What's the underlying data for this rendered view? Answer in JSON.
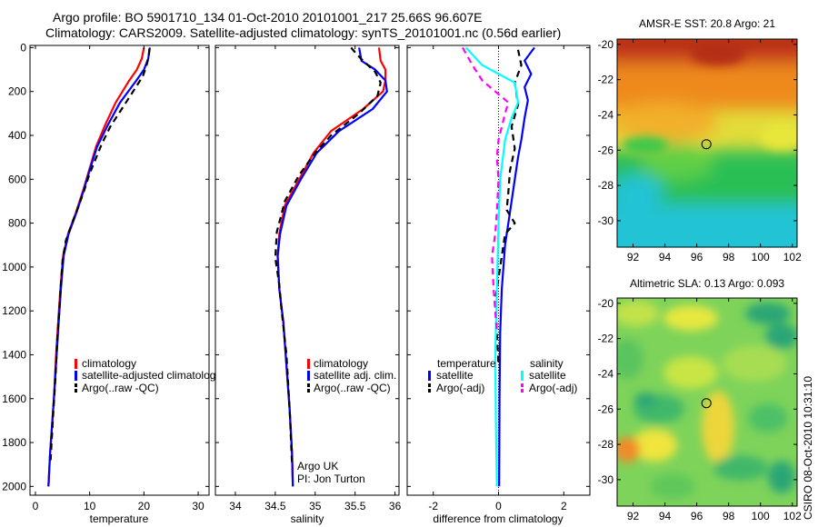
{
  "title": {
    "line1": "Argo profile: BO 5901710_134 01-Oct-2010 20101001_217 25.66S 96.607E",
    "line2": "Climatology: CARS2009. Satellite-adjusted climatology: synTS_20101001.nc (0.56d earlier)"
  },
  "side_label": "CSIRO 08-Oct-2010 10:31:10",
  "colors": {
    "climatology": "#ff0000",
    "satellite": "#0000ff",
    "argo": "#000000",
    "sal_satellite": "#00ffff",
    "sal_argo": "#ff00ff"
  },
  "chart_data": [
    {
      "id": "temperature",
      "type": "line",
      "xlabel": "temperature",
      "ylabel": "",
      "xlim": [
        -1,
        32
      ],
      "ylim": [
        2040,
        -10
      ],
      "xticks": [
        "0",
        "10",
        "20",
        "30"
      ],
      "xtick_values": [
        0,
        10,
        20,
        30
      ],
      "yticks": [
        "0",
        "200",
        "400",
        "600",
        "800",
        "1000",
        "1200",
        "1400",
        "1600",
        "1800",
        "2000"
      ],
      "ytick_values": [
        0,
        200,
        400,
        600,
        800,
        1000,
        1200,
        1400,
        1600,
        1800,
        2000
      ],
      "legend": {
        "placement": "bottom-right",
        "entries": [
          "climatology",
          "satellite-adjusted climatology",
          "Argo(..raw -QC)"
        ]
      },
      "series": [
        {
          "name": "climatology",
          "style": "solid",
          "color": "#ff0000",
          "x": [
            20.0,
            19.6,
            18.7,
            17.3,
            14.8,
            12.9,
            11.2,
            10.0,
            8.8,
            7.5,
            6.0,
            5.1,
            4.6,
            4.2,
            3.8,
            3.4,
            2.7,
            2.4
          ],
          "y": [
            0,
            50,
            100,
            150,
            250,
            350,
            450,
            550,
            650,
            750,
            850,
            950,
            1100,
            1250,
            1400,
            1600,
            1850,
            2000
          ]
        },
        {
          "name": "satellite-adjusted climatology",
          "style": "solid",
          "color": "#0000ff",
          "x": [
            21.1,
            20.8,
            20.0,
            18.6,
            15.6,
            13.4,
            11.4,
            10.1,
            8.9,
            7.6,
            6.1,
            5.2,
            4.7,
            4.3,
            3.9,
            3.4,
            2.7,
            2.4
          ],
          "y": [
            0,
            50,
            100,
            150,
            250,
            350,
            450,
            550,
            650,
            750,
            850,
            950,
            1100,
            1250,
            1400,
            1600,
            1850,
            2000
          ]
        },
        {
          "name": "Argo(..raw -QC)",
          "style": "dashed",
          "color": "#000000",
          "x": [
            21.0,
            20.9,
            20.5,
            19.8,
            18.0,
            15.9,
            13.8,
            12.2,
            10.9,
            9.9,
            9.0,
            8.0,
            6.9,
            5.6,
            5.0,
            4.7,
            4.4,
            4.0,
            3.7,
            3.2,
            2.8
          ],
          "y": [
            5,
            40,
            80,
            130,
            200,
            280,
            360,
            440,
            520,
            580,
            650,
            720,
            790,
            880,
            970,
            1080,
            1200,
            1350,
            1500,
            1700,
            1880
          ]
        }
      ]
    },
    {
      "id": "salinity",
      "type": "line",
      "xlabel": "salinity",
      "ylabel": "",
      "xlim": [
        33.75,
        36.05
      ],
      "ylim": [
        2040,
        -10
      ],
      "xticks": [
        "34",
        "34.5",
        "35",
        "35.5",
        "36"
      ],
      "xtick_values": [
        34,
        34.5,
        35,
        35.5,
        36
      ],
      "annotations": [
        "Argo UK",
        "PI: Jon Turton"
      ],
      "legend": {
        "placement": "bottom-right",
        "entries": [
          "climatology",
          "satellite adj. clim.",
          "Argo(..raw -QC)"
        ]
      },
      "series": [
        {
          "name": "climatology",
          "style": "solid",
          "color": "#ff0000",
          "x": [
            35.8,
            35.82,
            35.88,
            35.88,
            35.85,
            35.6,
            35.2,
            34.98,
            34.8,
            34.62,
            34.55,
            34.53,
            34.55,
            34.6,
            34.64,
            34.68,
            34.71,
            34.72
          ],
          "y": [
            0,
            60,
            100,
            150,
            200,
            280,
            380,
            480,
            600,
            720,
            850,
            950,
            1100,
            1250,
            1450,
            1650,
            1850,
            2000
          ]
        },
        {
          "name": "satellite adj. clim.",
          "style": "solid",
          "color": "#0000ff",
          "x": [
            35.55,
            35.58,
            35.75,
            35.88,
            35.9,
            35.72,
            35.3,
            35.02,
            34.82,
            34.64,
            34.56,
            34.53,
            34.55,
            34.6,
            34.64,
            34.68,
            34.71,
            34.72
          ],
          "y": [
            0,
            60,
            100,
            150,
            200,
            280,
            380,
            480,
            600,
            720,
            850,
            950,
            1100,
            1250,
            1450,
            1650,
            1850,
            2000
          ]
        },
        {
          "name": "Argo(..raw -QC)",
          "style": "dashed",
          "color": "#000000",
          "x": [
            35.45,
            35.52,
            35.6,
            35.75,
            35.82,
            35.78,
            35.55,
            35.2,
            35.0,
            34.8,
            34.62,
            34.52,
            34.5,
            34.55,
            34.58,
            34.64,
            34.68,
            34.71
          ],
          "y": [
            0,
            30,
            60,
            110,
            160,
            220,
            300,
            400,
            480,
            580,
            700,
            840,
            960,
            1080,
            1200,
            1400,
            1650,
            1900
          ]
        }
      ]
    },
    {
      "id": "difference",
      "type": "line",
      "xlabel": "difference from climatology",
      "ylabel": "",
      "xlim": [
        -2.8,
        2.8
      ],
      "ylim": [
        2040,
        -10
      ],
      "xticks": [
        "-2",
        "0",
        "2"
      ],
      "xtick_values": [
        -2,
        0,
        2
      ],
      "legend": {
        "placement": "bottom",
        "groups": [
          {
            "title": "temperature",
            "entries": [
              "satellite",
              "Argo(-adj)"
            ]
          },
          {
            "title": "salinity",
            "entries": [
              "satellite",
              "Argo(-adj)"
            ]
          }
        ]
      },
      "series": [
        {
          "name": "temperature satellite",
          "style": "solid",
          "color": "#0000ff",
          "x": [
            1.1,
            0.8,
            1.0,
            0.8,
            0.9,
            0.8,
            0.7,
            0.6,
            0.5,
            0.4,
            0.3,
            0.2,
            0.1,
            0.05,
            0.03,
            0.02
          ],
          "y": [
            0,
            60,
            120,
            180,
            240,
            320,
            420,
            500,
            600,
            700,
            800,
            900,
            1100,
            1300,
            1600,
            2000
          ]
        },
        {
          "name": "temperature Argo(-adj)",
          "style": "dashed",
          "color": "#000000",
          "x": [
            0.6,
            0.7,
            0.5,
            0.6,
            0.4,
            0.5,
            0.35,
            0.3,
            0.25,
            0.5,
            0.2,
            0.1,
            -0.1,
            -0.05,
            0.0
          ],
          "y": [
            10,
            80,
            160,
            260,
            360,
            460,
            560,
            660,
            740,
            800,
            850,
            950,
            1150,
            1300,
            1450
          ]
        },
        {
          "name": "salinity satellite",
          "style": "solid",
          "color": "#00ffff",
          "x": [
            -1.0,
            -0.5,
            0.5,
            0.6,
            0.4,
            0.2,
            0.05,
            0.0,
            -0.05,
            -0.1,
            -0.08,
            -0.05
          ],
          "y": [
            0,
            80,
            160,
            250,
            320,
            420,
            600,
            800,
            1100,
            1400,
            1700,
            2000
          ]
        },
        {
          "name": "salinity Argo(-adj)",
          "style": "dashed",
          "color": "#ff00ff",
          "x": [
            -1.1,
            -0.8,
            -0.5,
            0.3,
            0.2,
            0.0,
            -0.05,
            0.0,
            -0.05,
            -0.1,
            -0.2,
            -0.15,
            -0.05
          ],
          "y": [
            0,
            80,
            150,
            250,
            300,
            420,
            500,
            600,
            750,
            850,
            950,
            1100,
            1300
          ]
        }
      ]
    },
    {
      "id": "sst-map",
      "type": "heatmap",
      "title": "AMSR-E SST: 20.8 Argo: 21",
      "xlim": [
        91,
        102.3
      ],
      "ylim": [
        -31.5,
        -19.7
      ],
      "xticks": [
        "92",
        "94",
        "96",
        "98",
        "100",
        "102"
      ],
      "xtick_values": [
        92,
        94,
        96,
        98,
        100,
        102
      ],
      "yticks": [
        "-20",
        "-22",
        "-24",
        "-26",
        "-28",
        "-30"
      ],
      "ytick_values": [
        -20,
        -22,
        -24,
        -26,
        -28,
        -30
      ],
      "marker": {
        "lon": 96.607,
        "lat": -25.66
      },
      "colors": {
        "top": "#c63c1a",
        "upper": "#ee8a1a",
        "mid": "#e7e63a",
        "lower": "#2bbf55",
        "bottom": "#22c3d4"
      }
    },
    {
      "id": "sla-map",
      "type": "heatmap",
      "title": "Altimetric SLA: 0.13 Argo: 0.093",
      "xlim": [
        91,
        102.3
      ],
      "ylim": [
        -31.5,
        -19.7
      ],
      "xticks": [
        "92",
        "94",
        "96",
        "98",
        "100",
        "102"
      ],
      "xtick_values": [
        92,
        94,
        96,
        98,
        100,
        102
      ],
      "yticks": [
        "-20",
        "-22",
        "-24",
        "-26",
        "-28",
        "-30"
      ],
      "ytick_values": [
        -20,
        -22,
        -24,
        -26,
        -28,
        -30
      ],
      "marker": {
        "lon": 96.607,
        "lat": -25.66
      },
      "colors": {
        "base": "#7ed35a",
        "low": "#2aa676",
        "high": "#f0e43c",
        "hot": "#f08a2c"
      }
    }
  ]
}
